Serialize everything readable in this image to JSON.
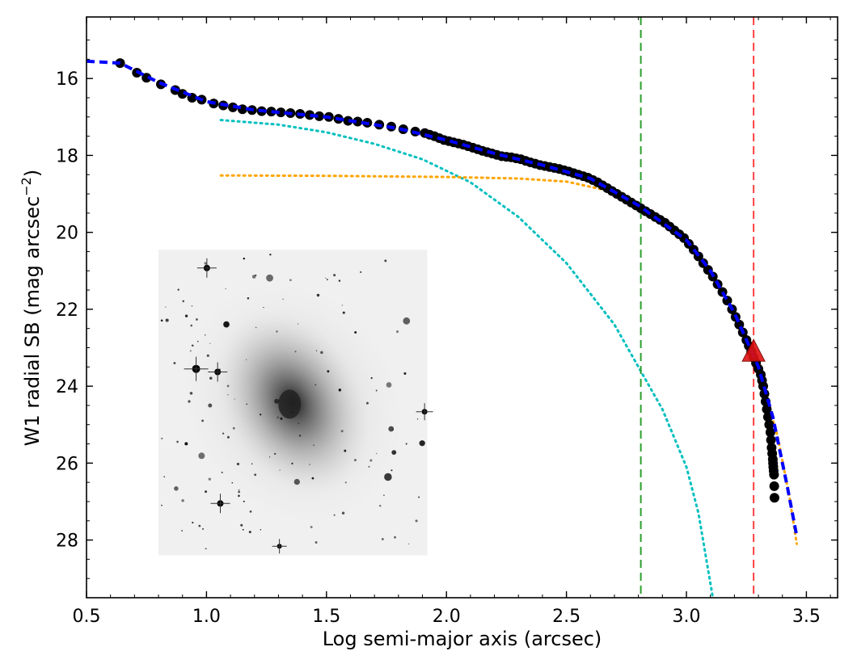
{
  "chart_data": {
    "type": "scatter",
    "title": "",
    "xlabel": "Log semi-major axis (arcsec)",
    "ylabel": "W1 radial SB (mag arcsec",
    "ylabel_sup": "−2",
    "ylabel_tail": ")",
    "xlim": [
      0.5,
      3.63
    ],
    "ylim": [
      29.5,
      14.4
    ],
    "y_inverted": true,
    "xticks": [
      0.5,
      1.0,
      1.5,
      2.0,
      2.5,
      3.0,
      3.5
    ],
    "xtick_labels": [
      "0.5",
      "1.0",
      "1.5",
      "2.0",
      "2.5",
      "3.0",
      "3.5"
    ],
    "yticks": [
      16,
      18,
      20,
      22,
      24,
      26,
      28
    ],
    "ytick_labels": [
      "16",
      "18",
      "20",
      "22",
      "24",
      "26",
      "28"
    ],
    "grid": false,
    "colors": {
      "data_points": "#000000",
      "total_model": "#0000ff",
      "bulge_model": "#00bfbf",
      "disk_model": "#ffa500",
      "green_line": "#2ca02c",
      "red_line": "#ff4040",
      "marker_fill": "#dd1111"
    },
    "data_points": [
      [
        0.64,
        15.6
      ],
      [
        0.71,
        15.85
      ],
      [
        0.75,
        15.98
      ],
      [
        0.81,
        16.15
      ],
      [
        0.87,
        16.3
      ],
      [
        0.9,
        16.4
      ],
      [
        0.94,
        16.5
      ],
      [
        0.98,
        16.55
      ],
      [
        1.03,
        16.65
      ],
      [
        1.07,
        16.7
      ],
      [
        1.11,
        16.75
      ],
      [
        1.15,
        16.8
      ],
      [
        1.19,
        16.82
      ],
      [
        1.23,
        16.85
      ],
      [
        1.27,
        16.86
      ],
      [
        1.31,
        16.88
      ],
      [
        1.35,
        16.9
      ],
      [
        1.39,
        16.92
      ],
      [
        1.43,
        16.95
      ],
      [
        1.47,
        16.98
      ],
      [
        1.51,
        17.0
      ],
      [
        1.55,
        17.05
      ],
      [
        1.59,
        17.1
      ],
      [
        1.63,
        17.12
      ],
      [
        1.67,
        17.15
      ],
      [
        1.72,
        17.2
      ],
      [
        1.77,
        17.25
      ],
      [
        1.82,
        17.32
      ],
      [
        1.87,
        17.38
      ],
      [
        1.91,
        17.42
      ],
      [
        1.95,
        17.5
      ],
      [
        1.99,
        17.6
      ],
      [
        2.03,
        17.66
      ],
      [
        2.07,
        17.72
      ],
      [
        2.11,
        17.8
      ],
      [
        2.15,
        17.88
      ],
      [
        2.19,
        17.95
      ],
      [
        2.23,
        18.02
      ],
      [
        2.27,
        18.05
      ],
      [
        2.31,
        18.1
      ],
      [
        2.35,
        18.18
      ],
      [
        2.39,
        18.25
      ],
      [
        2.43,
        18.3
      ],
      [
        2.47,
        18.35
      ],
      [
        2.51,
        18.42
      ],
      [
        2.55,
        18.5
      ],
      [
        2.59,
        18.58
      ],
      [
        2.63,
        18.7
      ],
      [
        2.67,
        18.85
      ],
      [
        2.71,
        19.0
      ],
      [
        2.75,
        19.15
      ],
      [
        2.79,
        19.3
      ],
      [
        2.83,
        19.45
      ],
      [
        2.87,
        19.6
      ],
      [
        2.91,
        19.75
      ],
      [
        2.95,
        19.95
      ],
      [
        2.99,
        20.15
      ],
      [
        3.03,
        20.45
      ],
      [
        3.07,
        20.8
      ],
      [
        3.11,
        21.15
      ],
      [
        3.15,
        21.55
      ],
      [
        3.19,
        22.0
      ],
      [
        3.22,
        22.4
      ],
      [
        3.25,
        22.8
      ],
      [
        3.27,
        23.1
      ],
      [
        3.29,
        23.4
      ],
      [
        3.31,
        23.7
      ],
      [
        3.32,
        24.0
      ],
      [
        3.33,
        24.4
      ],
      [
        3.34,
        24.8
      ],
      [
        3.35,
        25.2
      ],
      [
        3.355,
        25.6
      ],
      [
        3.36,
        25.9
      ],
      [
        3.362,
        26.1
      ],
      [
        3.365,
        26.3
      ],
      [
        3.367,
        26.9
      ]
    ],
    "total_model": [
      [
        0.5,
        15.55
      ],
      [
        0.64,
        15.6
      ],
      [
        0.8,
        16.1
      ],
      [
        1.0,
        16.6
      ],
      [
        1.2,
        16.82
      ],
      [
        1.5,
        17.0
      ],
      [
        1.8,
        17.3
      ],
      [
        2.0,
        17.6
      ],
      [
        2.2,
        17.95
      ],
      [
        2.4,
        18.25
      ],
      [
        2.6,
        18.6
      ],
      [
        2.8,
        19.3
      ],
      [
        3.0,
        20.2
      ],
      [
        3.1,
        21.0
      ],
      [
        3.2,
        22.1
      ],
      [
        3.3,
        23.5
      ],
      [
        3.36,
        24.8
      ],
      [
        3.42,
        26.6
      ],
      [
        3.46,
        27.9
      ]
    ],
    "bulge_model": [
      [
        1.06,
        17.08
      ],
      [
        1.3,
        17.2
      ],
      [
        1.5,
        17.4
      ],
      [
        1.7,
        17.7
      ],
      [
        1.9,
        18.1
      ],
      [
        2.1,
        18.7
      ],
      [
        2.3,
        19.6
      ],
      [
        2.5,
        20.8
      ],
      [
        2.7,
        22.4
      ],
      [
        2.9,
        24.6
      ],
      [
        3.0,
        26.1
      ],
      [
        3.05,
        27.3
      ],
      [
        3.11,
        29.5
      ]
    ],
    "disk_model": [
      [
        1.06,
        18.52
      ],
      [
        1.5,
        18.53
      ],
      [
        2.0,
        18.56
      ],
      [
        2.3,
        18.6
      ],
      [
        2.5,
        18.68
      ],
      [
        2.7,
        18.95
      ],
      [
        2.9,
        19.65
      ],
      [
        3.0,
        20.2
      ],
      [
        3.1,
        21.0
      ],
      [
        3.2,
        22.1
      ],
      [
        3.3,
        23.6
      ],
      [
        3.38,
        25.3
      ],
      [
        3.43,
        26.9
      ],
      [
        3.46,
        28.1
      ]
    ],
    "vertical_lines": [
      {
        "x": 2.81,
        "color": "#2ca02c"
      },
      {
        "x": 3.28,
        "color": "#ff4040"
      }
    ],
    "triangle_marker": {
      "x": 3.28,
      "y": 23.1
    },
    "inset_image": {
      "description_icon": "spiral-galaxy-image",
      "x_range": [
        0.8,
        1.92
      ],
      "y_range": [
        20.45,
        28.4
      ]
    }
  }
}
